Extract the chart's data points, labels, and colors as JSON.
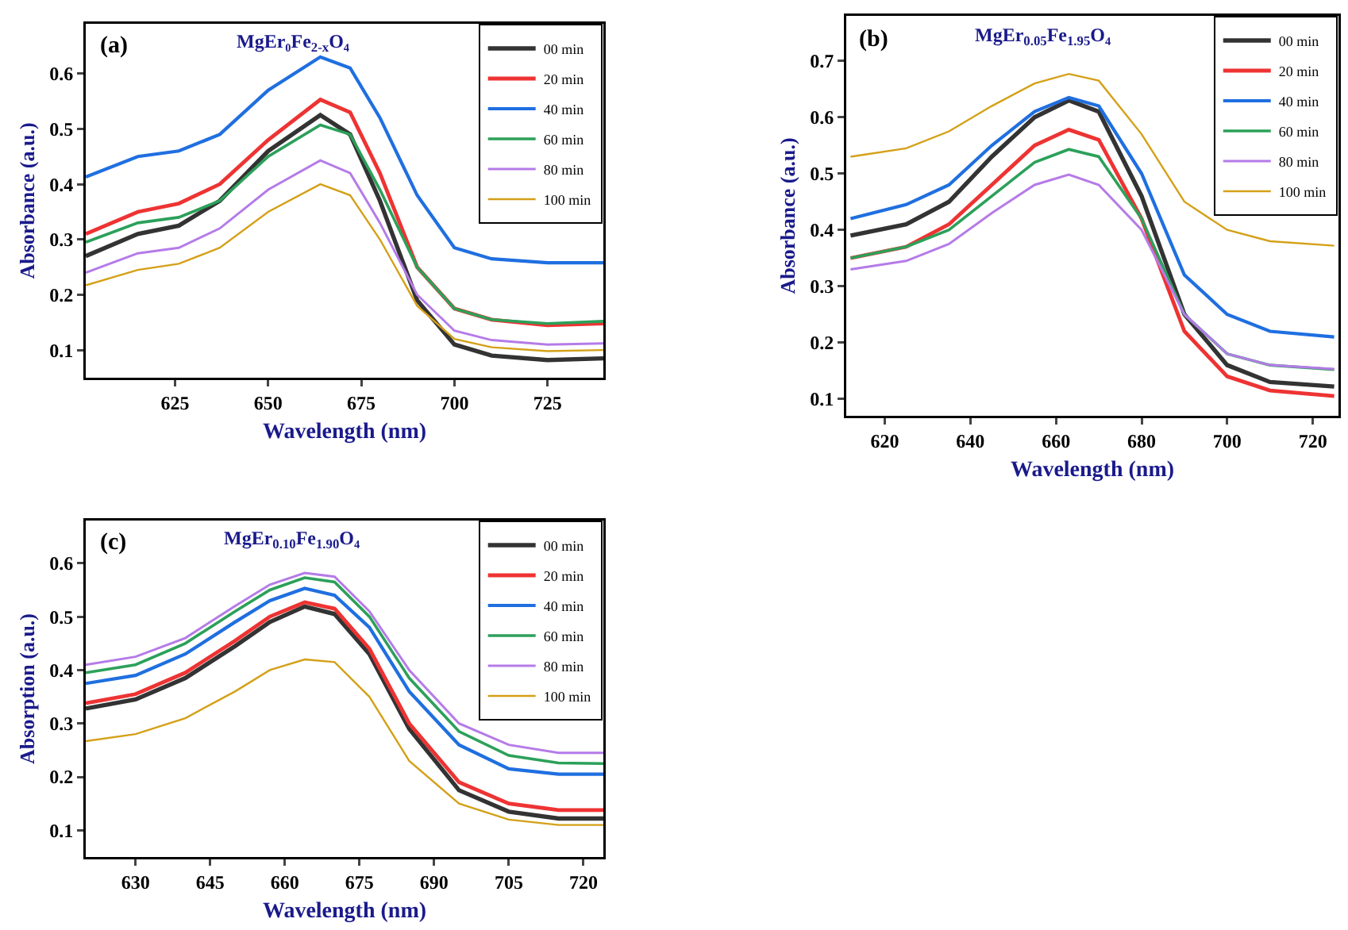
{
  "chart_data": [
    {
      "type": "line",
      "title": "MgEr₀Fe$_{2-x}$O₄",
      "annotations": [
        "(a)"
      ],
      "xlabel": "Wavelength (nm)",
      "ylabel": "Absorbance (a.u.)",
      "xlim": [
        601,
        740
      ],
      "xticks": [
        625,
        650,
        675,
        700,
        725
      ],
      "ylim": [
        0.05,
        0.69
      ],
      "yticks": [
        0.1,
        0.2,
        0.3,
        0.4,
        0.5,
        0.6
      ],
      "grid": false,
      "legend": "top right",
      "x": [
        601,
        615,
        626,
        637,
        650,
        664,
        672,
        680,
        690,
        700,
        710,
        725,
        740
      ],
      "series": [
        {
          "name": "00 min",
          "color": "#333333",
          "values": [
            0.27,
            0.31,
            0.325,
            0.37,
            0.46,
            0.525,
            0.49,
            0.37,
            0.19,
            0.11,
            0.09,
            0.082,
            0.085
          ]
        },
        {
          "name": "20 min",
          "color": "#ee3333",
          "values": [
            0.31,
            0.35,
            0.365,
            0.4,
            0.48,
            0.553,
            0.53,
            0.42,
            0.25,
            0.175,
            0.155,
            0.145,
            0.148
          ]
        },
        {
          "name": "40 min",
          "color": "#1f6fe0",
          "values": [
            0.413,
            0.45,
            0.46,
            0.49,
            0.57,
            0.63,
            0.61,
            0.52,
            0.38,
            0.285,
            0.265,
            0.258,
            0.258
          ]
        },
        {
          "name": "60 min",
          "color": "#2ca05a",
          "values": [
            0.295,
            0.33,
            0.34,
            0.37,
            0.45,
            0.507,
            0.49,
            0.39,
            0.25,
            0.175,
            0.155,
            0.148,
            0.152
          ]
        },
        {
          "name": "80 min",
          "color": "#b57be8",
          "values": [
            0.24,
            0.275,
            0.285,
            0.32,
            0.39,
            0.443,
            0.42,
            0.33,
            0.2,
            0.135,
            0.118,
            0.11,
            0.112
          ]
        },
        {
          "name": "100 min",
          "color": "#d4a017",
          "values": [
            0.217,
            0.245,
            0.256,
            0.285,
            0.35,
            0.4,
            0.38,
            0.3,
            0.18,
            0.12,
            0.105,
            0.098,
            0.1
          ]
        }
      ]
    },
    {
      "type": "line",
      "title": "MgEr$_{0.05}$Fe$_{1.95}$O₄",
      "annotations": [
        "(b)"
      ],
      "xlabel": "Wavelength (nm)",
      "ylabel": "Absorbance (a.u.)",
      "xlim": [
        611,
        726
      ],
      "xticks": [
        620,
        640,
        660,
        680,
        700,
        720
      ],
      "ylim": [
        0.07,
        0.78
      ],
      "yticks": [
        0.1,
        0.2,
        0.3,
        0.4,
        0.5,
        0.6,
        0.7
      ],
      "grid": false,
      "legend": "top right",
      "x": [
        612,
        625,
        635,
        645,
        655,
        663,
        670,
        680,
        690,
        700,
        710,
        725
      ],
      "series": [
        {
          "name": "00 min",
          "color": "#333333",
          "values": [
            0.39,
            0.41,
            0.45,
            0.53,
            0.6,
            0.63,
            0.61,
            0.46,
            0.25,
            0.16,
            0.13,
            0.122
          ]
        },
        {
          "name": "20 min",
          "color": "#ee3333",
          "values": [
            0.35,
            0.37,
            0.41,
            0.48,
            0.55,
            0.578,
            0.56,
            0.42,
            0.22,
            0.14,
            0.115,
            0.105
          ]
        },
        {
          "name": "40 min",
          "color": "#1f6fe0",
          "values": [
            0.42,
            0.445,
            0.48,
            0.55,
            0.61,
            0.635,
            0.62,
            0.5,
            0.32,
            0.25,
            0.22,
            0.21
          ]
        },
        {
          "name": "60 min",
          "color": "#2ca05a",
          "values": [
            0.35,
            0.37,
            0.4,
            0.46,
            0.52,
            0.543,
            0.53,
            0.42,
            0.25,
            0.18,
            0.16,
            0.152
          ]
        },
        {
          "name": "80 min",
          "color": "#b57be8",
          "values": [
            0.33,
            0.345,
            0.375,
            0.43,
            0.48,
            0.498,
            0.48,
            0.4,
            0.25,
            0.18,
            0.16,
            0.153
          ]
        },
        {
          "name": "100 min",
          "color": "#d4a017",
          "values": [
            0.53,
            0.545,
            0.575,
            0.62,
            0.66,
            0.677,
            0.665,
            0.57,
            0.45,
            0.4,
            0.38,
            0.372
          ]
        }
      ]
    },
    {
      "type": "line",
      "title": "MgEr$_{0.10}$Fe$_{1.90}$O₄",
      "annotations": [
        "(c)"
      ],
      "xlabel": "Wavelength (nm)",
      "ylabel": "Absorption (a.u.)",
      "xlim": [
        620,
        724
      ],
      "xticks": [
        630,
        645,
        660,
        675,
        690,
        705,
        720
      ],
      "ylim": [
        0.05,
        0.68
      ],
      "yticks": [
        0.1,
        0.2,
        0.3,
        0.4,
        0.5,
        0.6
      ],
      "grid": false,
      "legend": "top right",
      "x": [
        620,
        630,
        640,
        650,
        657,
        664,
        670,
        677,
        685,
        695,
        705,
        715,
        724
      ],
      "series": [
        {
          "name": "00 min",
          "color": "#333333",
          "values": [
            0.328,
            0.345,
            0.385,
            0.445,
            0.49,
            0.519,
            0.505,
            0.43,
            0.29,
            0.175,
            0.135,
            0.122,
            0.122
          ]
        },
        {
          "name": "20 min",
          "color": "#ee3333",
          "values": [
            0.338,
            0.355,
            0.395,
            0.455,
            0.5,
            0.527,
            0.515,
            0.44,
            0.3,
            0.19,
            0.15,
            0.138,
            0.138
          ]
        },
        {
          "name": "40 min",
          "color": "#1f6fe0",
          "values": [
            0.375,
            0.39,
            0.43,
            0.49,
            0.53,
            0.553,
            0.54,
            0.48,
            0.36,
            0.26,
            0.215,
            0.205,
            0.205
          ]
        },
        {
          "name": "60 min",
          "color": "#2ca05a",
          "values": [
            0.395,
            0.41,
            0.45,
            0.51,
            0.55,
            0.573,
            0.565,
            0.5,
            0.385,
            0.285,
            0.24,
            0.226,
            0.225
          ]
        },
        {
          "name": "80 min",
          "color": "#b57be8",
          "values": [
            0.41,
            0.425,
            0.46,
            0.52,
            0.56,
            0.582,
            0.575,
            0.51,
            0.4,
            0.3,
            0.26,
            0.245,
            0.245
          ]
        },
        {
          "name": "100 min",
          "color": "#d4a017",
          "values": [
            0.267,
            0.28,
            0.31,
            0.36,
            0.4,
            0.42,
            0.415,
            0.35,
            0.23,
            0.15,
            0.12,
            0.11,
            0.11
          ]
        }
      ]
    }
  ]
}
